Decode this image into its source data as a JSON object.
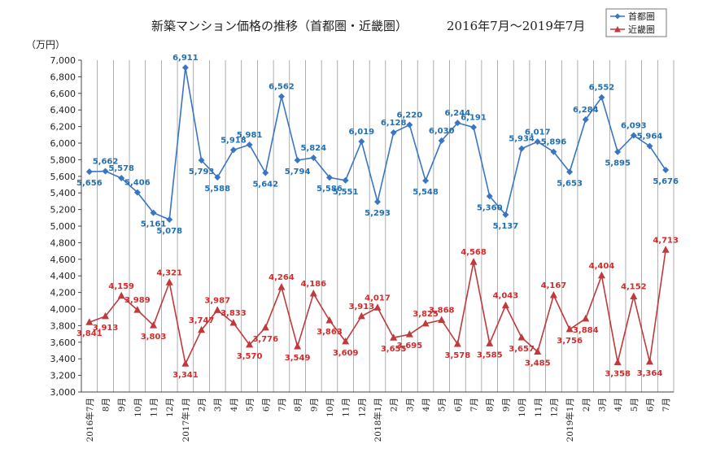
{
  "chart_data": {
    "type": "line",
    "title": "新築マンション価格の推移（首都圏・近畿圏）",
    "subtitle": "2016年7月～2019年7月",
    "ylabel": "（万円）",
    "xlabel": "",
    "ylim": [
      3000,
      7000
    ],
    "ytick_step": 200,
    "grid": "vertical",
    "legend_position": "top-right",
    "categories": [
      "2016年7月",
      "8月",
      "9月",
      "10月",
      "11月",
      "12月",
      "2017年1月",
      "2月",
      "3月",
      "4月",
      "5月",
      "6月",
      "7月",
      "8月",
      "9月",
      "10月",
      "11月",
      "12月",
      "2018年1月",
      "2月",
      "3月",
      "4月",
      "5月",
      "6月",
      "7月",
      "8月",
      "9月",
      "10月",
      "11月",
      "12月",
      "2019年1月",
      "2月",
      "3月",
      "4月",
      "5月",
      "6月",
      "7月"
    ],
    "series": [
      {
        "name": "首都圏",
        "color": "#3a75c4",
        "label_color": "#1f6fb2",
        "marker": "diamond",
        "values": [
          5656,
          5662,
          5578,
          5406,
          5161,
          5078,
          6911,
          5793,
          5588,
          5918,
          5981,
          5642,
          6562,
          5794,
          5824,
          5586,
          5551,
          6019,
          5293,
          6128,
          6220,
          5548,
          6030,
          6244,
          6191,
          5360,
          5137,
          5934,
          6017,
          5896,
          5653,
          6284,
          6552,
          5895,
          6093,
          5964,
          5676
        ],
        "labels": [
          "5,656",
          "5,662",
          "5,578",
          "5,406",
          "5,161",
          "5,078",
          "6,911",
          "5,793",
          "5,588",
          "5,918",
          "5,981",
          "5,642",
          "6,562",
          "5,794",
          "5,824",
          "5,586",
          "5,551",
          "6,019",
          "5,293",
          "6,128",
          "6,220",
          "5,548",
          "6,030",
          "6,244",
          "6,191",
          "5,360",
          "5,137",
          "5,934",
          "6,017",
          "5,896",
          "5,653",
          "6,284",
          "6,552",
          "5,895",
          "6,093",
          "5,964",
          "5,676"
        ]
      },
      {
        "name": "近畿圏",
        "color": "#c0393b",
        "label_color": "#d42a2a",
        "marker": "triangle",
        "values": [
          3841,
          3913,
          4159,
          3989,
          3803,
          4321,
          3341,
          3747,
          3987,
          3833,
          3570,
          3776,
          4264,
          3549,
          4186,
          3863,
          3609,
          3913,
          4017,
          3655,
          3695,
          3825,
          3868,
          3578,
          4568,
          3585,
          4043,
          3657,
          3485,
          4167,
          3756,
          3884,
          4404,
          3358,
          4152,
          3364,
          4713
        ],
        "labels": [
          "3,841",
          "3,913",
          "4,159",
          "3,989",
          "3,803",
          "4,321",
          "3,341",
          "3,747",
          "3,987",
          "3,833",
          "3,570",
          "3,776",
          "4,264",
          "3,549",
          "4,186",
          "3,863",
          "3,609",
          "3,913",
          "4,017",
          "3,655",
          "3,695",
          "3,825",
          "3,868",
          "3,578",
          "4,568",
          "3,585",
          "4,043",
          "3,657",
          "3,485",
          "4,167",
          "3,756",
          "3,884",
          "4,404",
          "3,358",
          "4,152",
          "3,364",
          "4,713"
        ]
      }
    ]
  }
}
